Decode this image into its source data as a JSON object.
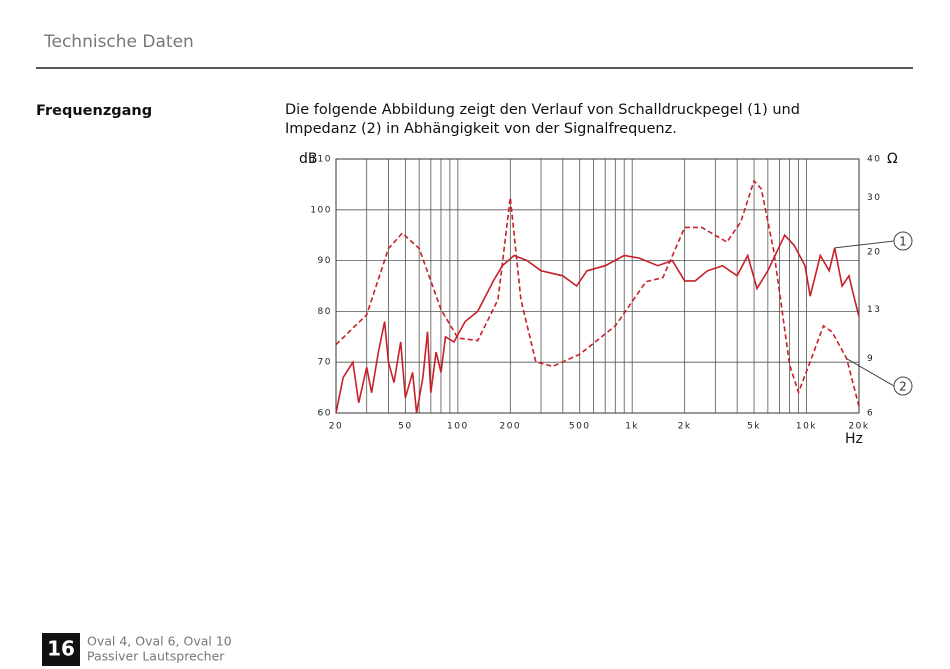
{
  "header": {
    "title": "Technische Daten"
  },
  "section": {
    "heading": "Frequenzgang",
    "text": "Die folgende Abbildung zeigt den Verlauf von Schalldruckpegel (1) und Impedanz (2) in Abhängigkeit von der Signalfrequenz."
  },
  "chart_data": {
    "type": "line",
    "y_label": "dB",
    "y2_label": "Ω",
    "x_label": "Hz",
    "xscale": "log",
    "y2scale": "log",
    "xlim": [
      20,
      20000
    ],
    "xticks": [
      20,
      50,
      100,
      200,
      500,
      {
        "value": 1000,
        "label": "1k"
      },
      {
        "value": 2000,
        "label": "2k"
      },
      {
        "value": 5000,
        "label": "5k"
      },
      {
        "value": 10000,
        "label": "10k"
      },
      {
        "value": 20000,
        "label": "20k"
      }
    ],
    "xgrid": [
      20,
      30,
      40,
      50,
      60,
      70,
      80,
      90,
      100,
      200,
      300,
      400,
      500,
      600,
      700,
      800,
      900,
      1000,
      2000,
      3000,
      4000,
      5000,
      6000,
      7000,
      8000,
      9000,
      10000,
      20000
    ],
    "ylim": [
      60,
      110
    ],
    "yticks": [
      60,
      70,
      80,
      90,
      100,
      110
    ],
    "y2lim": [
      6,
      40
    ],
    "y2ticks": [
      6,
      9,
      13,
      20,
      30,
      40
    ],
    "grid": true,
    "series": [
      {
        "color": "#c8202a",
        "style": "solid",
        "annotation": "1",
        "x": [
          20,
          22,
          25,
          27,
          30,
          32,
          35,
          38,
          40,
          43,
          47,
          50,
          55,
          58,
          63,
          67,
          70,
          75,
          80,
          85,
          95,
          110,
          130,
          160,
          180,
          210,
          250,
          300,
          400,
          480,
          550,
          700,
          900,
          1100,
          1400,
          1700,
          2000,
          2300,
          2700,
          3300,
          4000,
          4600,
          5200,
          6000,
          7500,
          8500,
          9800,
          10500,
          12000,
          13500,
          14500,
          16000,
          17500,
          19000,
          20000
        ],
        "values": [
          60,
          67,
          70,
          62,
          69,
          64,
          72,
          78,
          70,
          66,
          74,
          63,
          68,
          60,
          67,
          76,
          64,
          72,
          68,
          75,
          74,
          78,
          80,
          86,
          89,
          91,
          90,
          88,
          87,
          85,
          88,
          89,
          91,
          90.5,
          89,
          90,
          86,
          86,
          88,
          89,
          87,
          91,
          84.5,
          88,
          95,
          93,
          89,
          83,
          91,
          88,
          92.5,
          85,
          87,
          82,
          79
        ]
      },
      {
        "color": "#c8202a",
        "style": "dashed",
        "axis": "y2",
        "annotation": "2",
        "x": [
          20,
          30,
          40,
          48,
          60,
          80,
          100,
          130,
          170,
          200,
          230,
          280,
          350,
          500,
          800,
          1200,
          1500,
          2000,
          2500,
          3500,
          4200,
          5000,
          5500,
          6500,
          8000,
          9000,
          10500,
          12500,
          14000,
          17000,
          20000
        ],
        "values": [
          10,
          12.5,
          20.5,
          23,
          20.5,
          13,
          10.5,
          10.3,
          14,
          30,
          14,
          8.8,
          8.5,
          9.3,
          11.5,
          16,
          16.5,
          24,
          24,
          21.5,
          25,
          34,
          32,
          20,
          8.6,
          7,
          8.8,
          11.5,
          11,
          9,
          6.3
        ]
      }
    ]
  },
  "footer": {
    "page": "16",
    "models": "Oval 4, Oval 6, Oval 10",
    "product": "Passiver Lautsprecher"
  }
}
